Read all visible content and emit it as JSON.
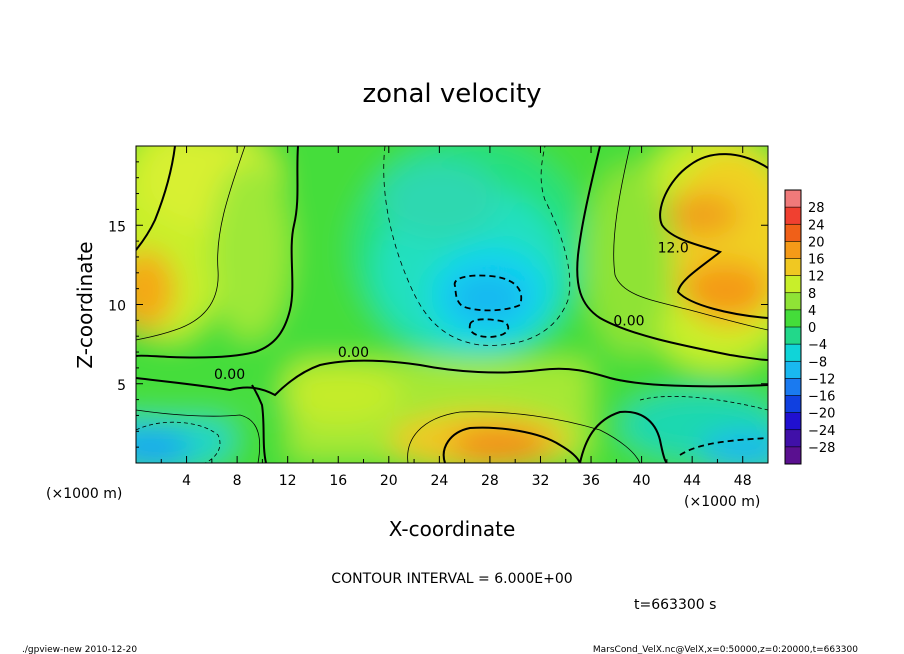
{
  "chart_data": {
    "type": "heatmap",
    "title": "zonal velocity",
    "xlabel": "X-coordinate",
    "ylabel": "Z-coordinate",
    "x_unit": "(×1000 m)",
    "y_unit": "(×1000 m)",
    "xlim": [
      0,
      50
    ],
    "ylim": [
      0,
      20
    ],
    "x_ticks": [
      "4",
      "8",
      "12",
      "16",
      "20",
      "24",
      "28",
      "32",
      "36",
      "40",
      "44",
      "48"
    ],
    "y_ticks": [
      "5",
      "10",
      "15"
    ],
    "colorbar_ticks": [
      "28",
      "24",
      "20",
      "16",
      "12",
      "8",
      "4",
      "0",
      "−4",
      "−8",
      "−12",
      "−16",
      "−20",
      "−24",
      "−28"
    ],
    "colorbar_levels": [
      28,
      24,
      20,
      16,
      12,
      8,
      4,
      0,
      -4,
      -8,
      -12,
      -16,
      -20,
      -24,
      -28
    ],
    "contour_labels": [
      {
        "text": "12.0",
        "x": 42.5,
        "z": 13.6
      },
      {
        "text": "0.00",
        "x": 39.0,
        "z": 9.0
      },
      {
        "text": "0.00",
        "x": 17.2,
        "z": 7.0
      },
      {
        "text": "0.00",
        "x": 7.4,
        "z": 5.6
      }
    ],
    "contour_interval": "CONTOUR INTERVAL = 6.000E+00",
    "time_label": "t=663300 s",
    "grid": false
  },
  "footer": {
    "left": "./gpview-new  2010-12-20",
    "right": "MarsCond_VelX.nc@VelX,x=0:50000,z=0:20000,t=663300"
  }
}
